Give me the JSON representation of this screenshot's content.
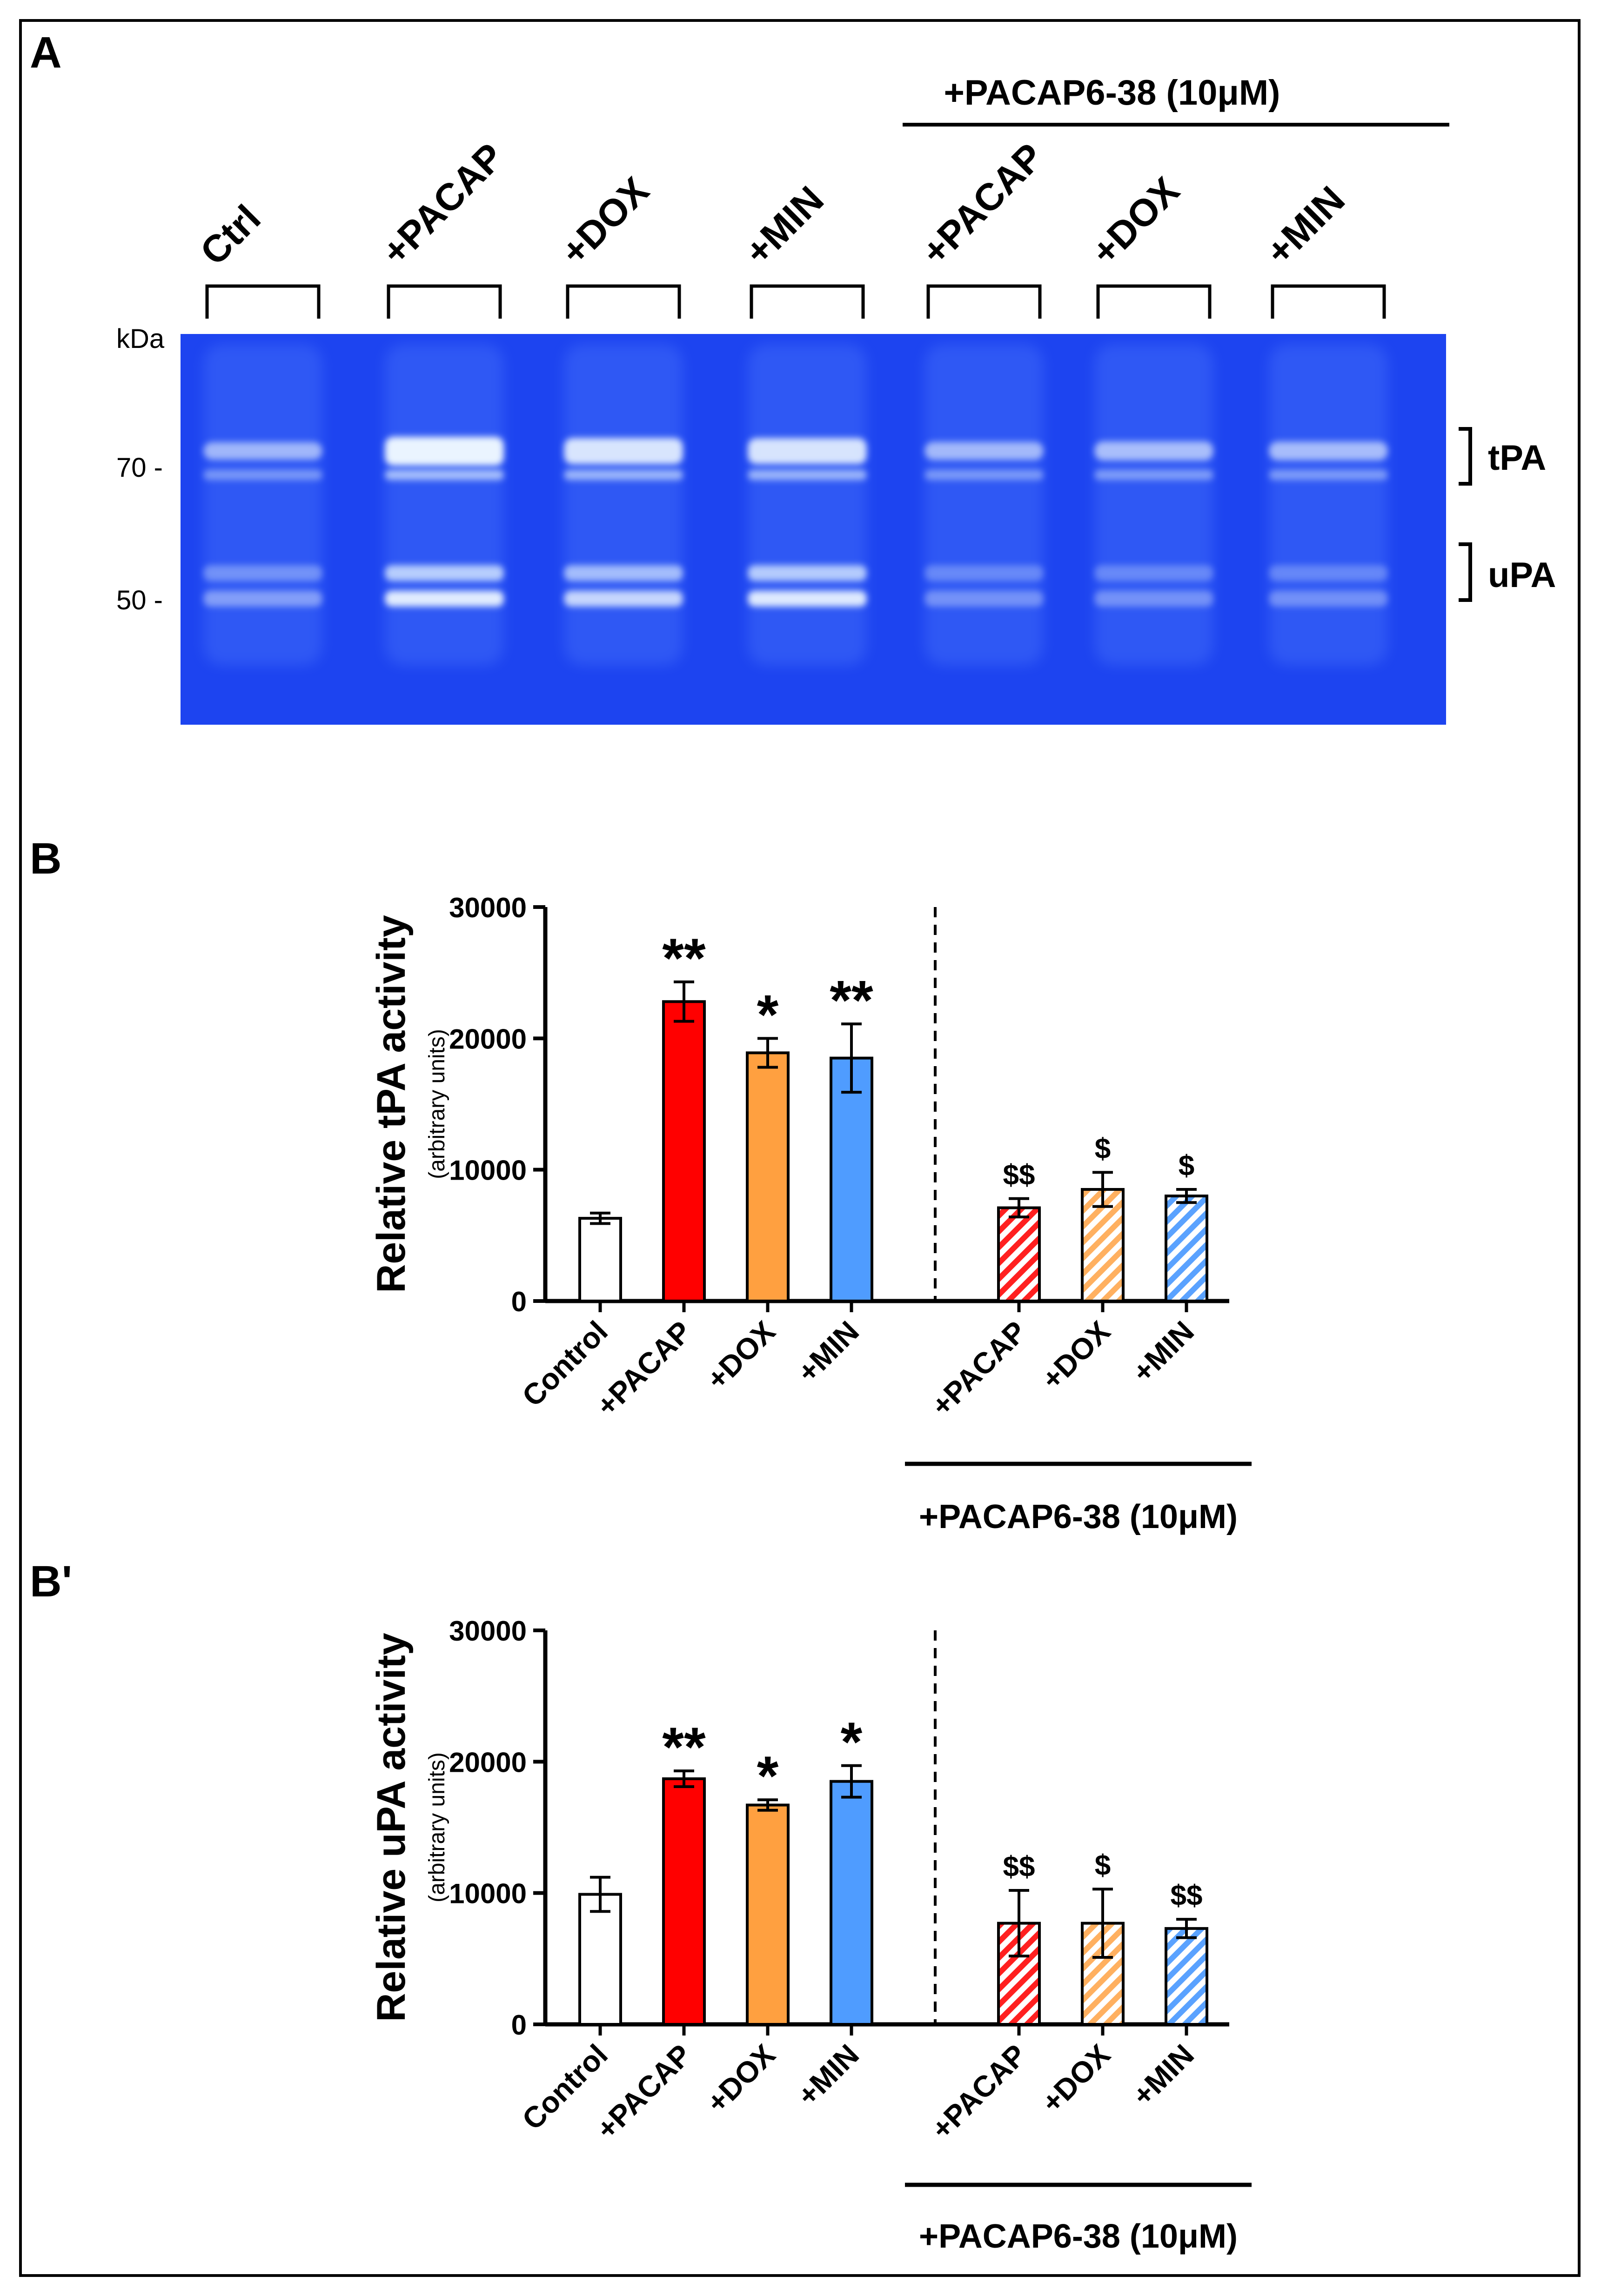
{
  "panels": {
    "a": {
      "label": "A"
    },
    "b": {
      "label": "B"
    },
    "b_prime": {
      "label": "B'"
    }
  },
  "gel": {
    "antagonist_label": "+PACAP6-38 (10μM)",
    "lanes": [
      "Ctrl",
      "+PACAP",
      "+DOX",
      "+MIN",
      "+PACAP",
      "+DOX",
      "+MIN"
    ],
    "kda_label": "kDa",
    "markers": [
      {
        "text": "70 -",
        "kda": 70
      },
      {
        "text": "50 -",
        "kda": 50
      }
    ],
    "band_labels": [
      "tPA",
      "uPA"
    ],
    "colors": {
      "gel": "#1d44f0",
      "band": "#eaf4ff"
    }
  },
  "chart_data": [
    {
      "type": "bar",
      "title": "",
      "ylabel": "Relative tPA activity",
      "ylabel_sub": "(arbitrary units)",
      "ylim": [
        0,
        30000
      ],
      "yticks": [
        0,
        10000,
        20000,
        30000
      ],
      "ytick_labels": [
        "0",
        "10000",
        "20000",
        "30000"
      ],
      "categories": [
        "Control",
        "+PACAP",
        "+DOX",
        "+MIN",
        "+PACAP",
        "+DOX",
        "+MIN"
      ],
      "values": [
        6300,
        22800,
        18900,
        18500,
        7100,
        8500,
        8000
      ],
      "errors": [
        400,
        1500,
        1100,
        2600,
        700,
        1300,
        500
      ],
      "annotations": [
        "",
        "**",
        "*",
        "**",
        "$$",
        "$",
        "$"
      ],
      "fill_colors": [
        "#ffffff",
        "#ff0000",
        "#ffa040",
        "#4f9cff",
        "#ff2020",
        "#ffb060",
        "#5aa2ff"
      ],
      "hatched": [
        false,
        false,
        false,
        false,
        true,
        true,
        true
      ],
      "group_label": "+PACAP6-38 (10μM)"
    },
    {
      "type": "bar",
      "title": "",
      "ylabel": "Relative uPA activity",
      "ylabel_sub": "(arbitrary units)",
      "ylim": [
        0,
        30000
      ],
      "yticks": [
        0,
        10000,
        20000,
        30000
      ],
      "ytick_labels": [
        "0",
        "10000",
        "20000",
        "30000"
      ],
      "categories": [
        "Control",
        "+PACAP",
        "+DOX",
        "+MIN",
        "+PACAP",
        "+DOX",
        "+MIN"
      ],
      "values": [
        9900,
        18700,
        16700,
        18500,
        7700,
        7700,
        7300
      ],
      "errors": [
        1300,
        600,
        400,
        1200,
        2500,
        2600,
        700
      ],
      "annotations": [
        "",
        "**",
        "*",
        "*",
        "$$",
        "$",
        "$$"
      ],
      "fill_colors": [
        "#ffffff",
        "#ff0000",
        "#ffa040",
        "#4f9cff",
        "#ff2020",
        "#ffb060",
        "#5aa2ff"
      ],
      "hatched": [
        false,
        false,
        false,
        false,
        true,
        true,
        true
      ],
      "group_label": "+PACAP6-38 (10μM)"
    }
  ]
}
